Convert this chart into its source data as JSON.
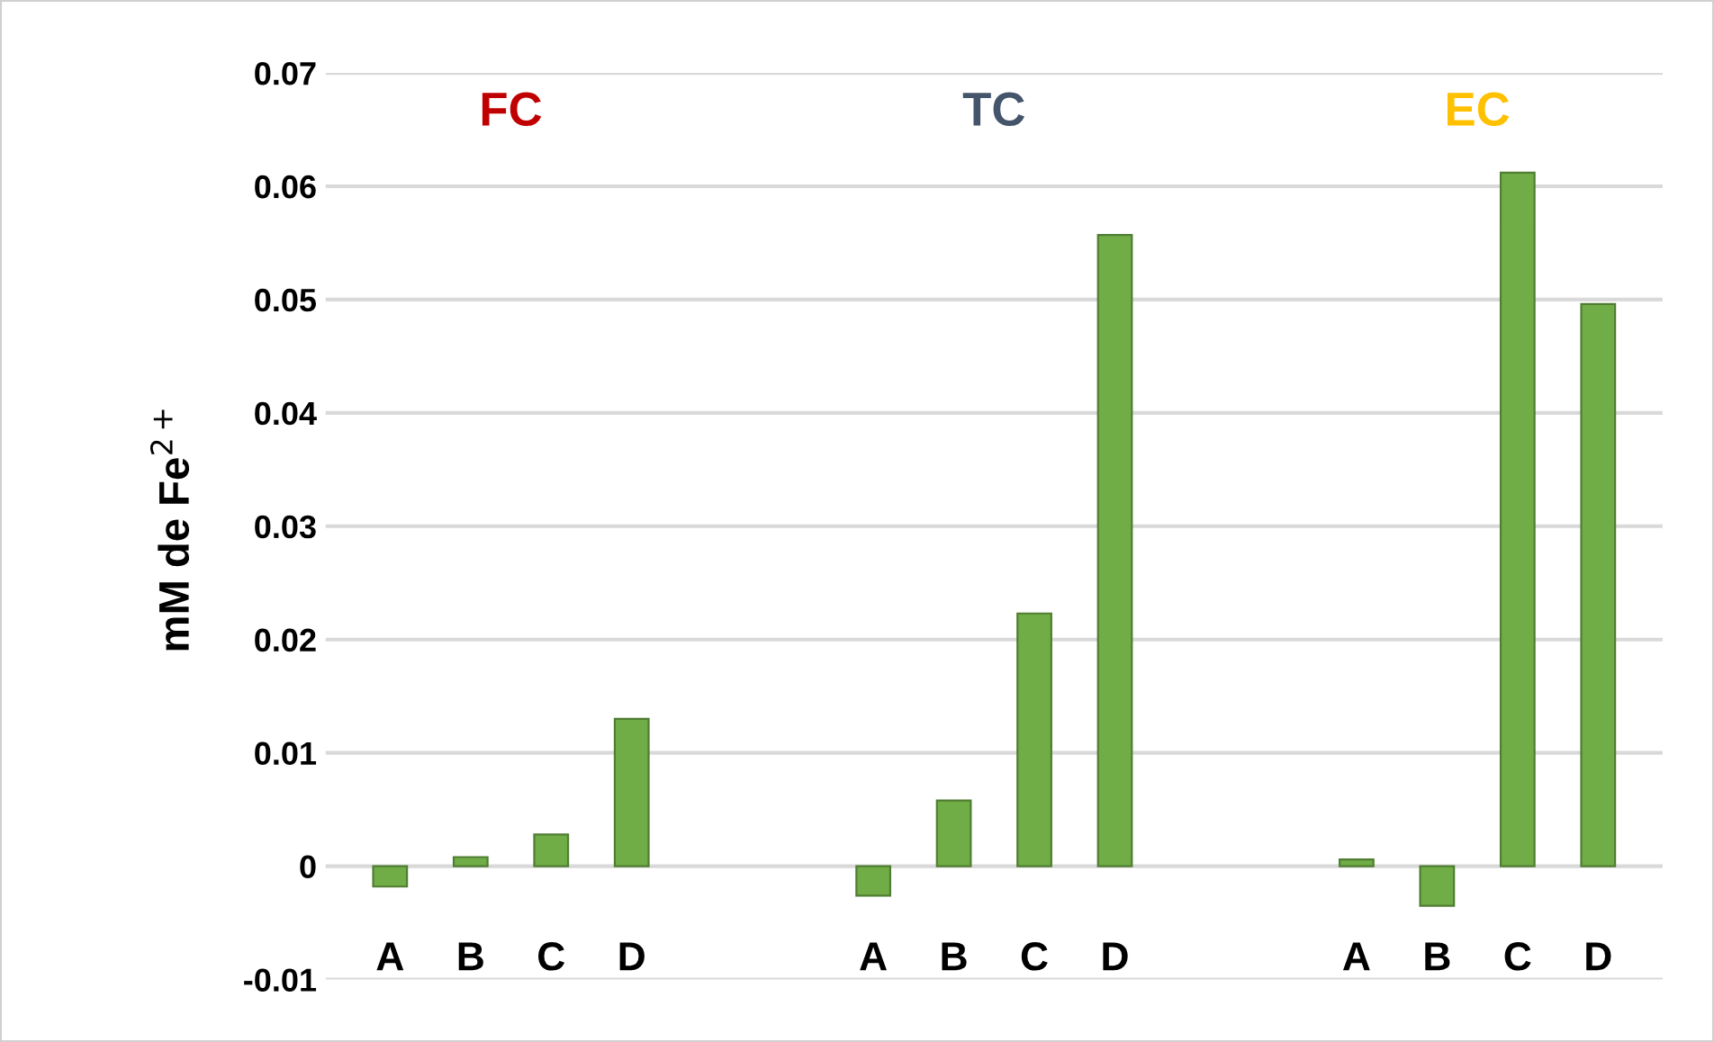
{
  "chart_data": {
    "type": "bar",
    "ylabel": "mM de Fe$^{2+}$",
    "categories": [
      "A",
      "B",
      "C",
      "D",
      null,
      null,
      "A",
      "B",
      "C",
      "D",
      null,
      null,
      "A",
      "B",
      "C",
      "D"
    ],
    "values": [
      -0.0018,
      0.0008,
      0.0028,
      0.013,
      null,
      null,
      -0.0026,
      0.0058,
      0.0223,
      0.0557,
      null,
      null,
      0.0006,
      -0.0035,
      0.0612,
      0.0496
    ],
    "color": "#70ad47",
    "annotations": [
      "FC",
      "TC",
      "EC"
    ],
    "ylim": [
      -0.01,
      0.07
    ],
    "yticks": [
      -0.01,
      0,
      0.01,
      0.02,
      0.03,
      0.04,
      0.05,
      0.06,
      0.07
    ],
    "grid": "y"
  }
}
